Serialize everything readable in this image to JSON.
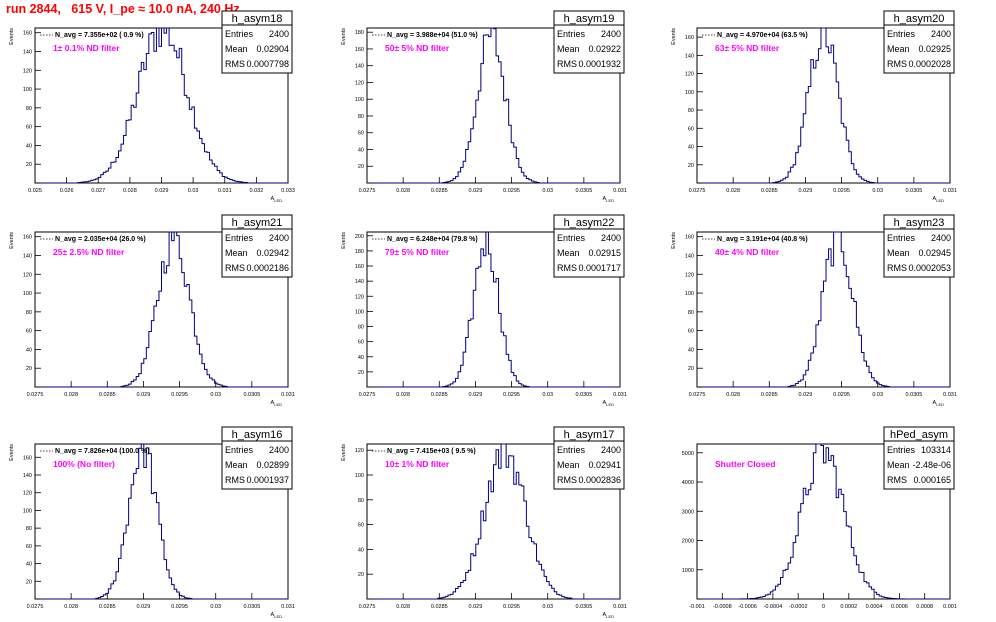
{
  "title": "run 2844,   615 V, I_pe ≈ 10.0 nA, 240 Hz",
  "colors": {
    "title": "#ff0000",
    "hist": "#000080",
    "annotation": "#ff00ff",
    "axis": "#000000"
  },
  "chart_data": [
    {
      "type": "bar",
      "name": "h_asym18",
      "annotation": "1± 0.1% ND filter",
      "navg": "N_avg = 7.355e+02 ( 0.9 %)",
      "stats": {
        "entries": "2400",
        "mean": "0.02904",
        "rms": "0.0007798"
      },
      "stats_labels": [
        "Entries",
        "Mean",
        "RMS"
      ],
      "xlim": [
        0.025,
        0.033
      ],
      "ylim": [
        0,
        165
      ],
      "xticks": [
        0.025,
        0.026,
        0.027,
        0.028,
        0.029,
        0.03,
        0.031,
        0.032,
        0.033
      ],
      "xtick_labels": [
        "0.025",
        "0.026",
        "0.027",
        "0.028",
        "0.029",
        "0.03",
        "0.031",
        "0.032",
        "0.033"
      ],
      "yticks": [
        0,
        20,
        40,
        60,
        80,
        100,
        120,
        140,
        160
      ],
      "ytick_labels": [
        "20",
        "40",
        "60",
        "80",
        "100",
        "120",
        "140",
        "160"
      ],
      "xlabel": "A_{LED}",
      "ylabel": "Events",
      "hist": {
        "mean": 0.02904,
        "rms": 0.0007798,
        "entries": 2400,
        "bins": 100,
        "peak": 165
      }
    },
    {
      "type": "bar",
      "name": "h_asym19",
      "annotation": "50± 5% ND filter",
      "navg": "N_avg = 3.988e+04 (51.0 %)",
      "stats": {
        "entries": "2400",
        "mean": "0.02922",
        "rms": "0.0001932"
      },
      "stats_labels": [
        "Entries",
        "Mean",
        "RMS"
      ],
      "xlim": [
        0.0275,
        0.031
      ],
      "ylim": [
        0,
        185
      ],
      "xticks": [
        0.0275,
        0.028,
        0.0285,
        0.029,
        0.0295,
        0.03,
        0.0305,
        0.031
      ],
      "xtick_labels": [
        "0.0275",
        "0.028",
        "0.0285",
        "0.029",
        "0.0295",
        "0.03",
        "0.0305",
        "0.031"
      ],
      "yticks": [
        0,
        20,
        40,
        60,
        80,
        100,
        120,
        140,
        160,
        180
      ],
      "ytick_labels": [
        "20",
        "40",
        "60",
        "80",
        "100",
        "120",
        "140",
        "160",
        "180"
      ],
      "xlabel": "A_{LED}",
      "ylabel": "Events",
      "hist": {
        "mean": 0.02922,
        "rms": 0.0001932,
        "entries": 2400,
        "bins": 100,
        "peak": 175
      }
    },
    {
      "type": "bar",
      "name": "h_asym20",
      "annotation": "63± 5% ND filter",
      "navg": "N_avg = 4.970e+04 (63.5 %)",
      "stats": {
        "entries": "2400",
        "mean": "0.02925",
        "rms": "0.0002028"
      },
      "stats_labels": [
        "Entries",
        "Mean",
        "RMS"
      ],
      "xlim": [
        0.0275,
        0.031
      ],
      "ylim": [
        0,
        170
      ],
      "xticks": [
        0.0275,
        0.028,
        0.0285,
        0.029,
        0.0295,
        0.03,
        0.0305,
        0.031
      ],
      "xtick_labels": [
        "0.0275",
        "0.028",
        "0.0285",
        "0.029",
        "0.0295",
        "0.03",
        "0.0305",
        "0.031"
      ],
      "yticks": [
        0,
        20,
        40,
        60,
        80,
        100,
        120,
        140,
        160
      ],
      "ytick_labels": [
        "20",
        "40",
        "60",
        "80",
        "100",
        "120",
        "140",
        "160"
      ],
      "xlabel": "A_{LED}",
      "ylabel": "Events",
      "hist": {
        "mean": 0.02925,
        "rms": 0.0002028,
        "entries": 2400,
        "bins": 100,
        "peak": 165
      }
    },
    {
      "type": "bar",
      "name": "h_asym21",
      "annotation": "25± 2.5% ND filter",
      "navg": "N_avg = 2.035e+04 (26.0 %)",
      "stats": {
        "entries": "2400",
        "mean": "0.02942",
        "rms": "0.0002186"
      },
      "stats_labels": [
        "Entries",
        "Mean",
        "RMS"
      ],
      "xlim": [
        0.0275,
        0.031
      ],
      "ylim": [
        0,
        165
      ],
      "xticks": [
        0.0275,
        0.028,
        0.0285,
        0.029,
        0.0295,
        0.03,
        0.0305,
        0.031
      ],
      "xtick_labels": [
        "0.0275",
        "0.028",
        "0.0285",
        "0.029",
        "0.0295",
        "0.03",
        "0.0305",
        "0.031"
      ],
      "yticks": [
        0,
        20,
        40,
        60,
        80,
        100,
        120,
        140,
        160
      ],
      "ytick_labels": [
        "20",
        "40",
        "60",
        "80",
        "100",
        "120",
        "140",
        "160"
      ],
      "xlabel": "A_{LED}",
      "ylabel": "Events",
      "hist": {
        "mean": 0.02942,
        "rms": 0.0002186,
        "entries": 2400,
        "bins": 100,
        "peak": 160
      }
    },
    {
      "type": "bar",
      "name": "h_asym22",
      "annotation": "79± 5% ND filter",
      "navg": "N_avg = 6.248e+04 (79.8 %)",
      "stats": {
        "entries": "2400",
        "mean": "0.02915",
        "rms": "0.0001717"
      },
      "stats_labels": [
        "Entries",
        "Mean",
        "RMS"
      ],
      "xlim": [
        0.0275,
        0.031
      ],
      "ylim": [
        0,
        205
      ],
      "xticks": [
        0.0275,
        0.028,
        0.0285,
        0.029,
        0.0295,
        0.03,
        0.0305,
        0.031
      ],
      "xtick_labels": [
        "0.0275",
        "0.028",
        "0.0285",
        "0.029",
        "0.0295",
        "0.03",
        "0.0305",
        "0.031"
      ],
      "yticks": [
        0,
        20,
        40,
        60,
        80,
        100,
        120,
        140,
        160,
        180,
        200
      ],
      "ytick_labels": [
        "20",
        "40",
        "60",
        "80",
        "100",
        "120",
        "140",
        "160",
        "180",
        "200"
      ],
      "xlabel": "A_{LED}",
      "ylabel": "Events",
      "hist": {
        "mean": 0.02915,
        "rms": 0.0001717,
        "entries": 2400,
        "bins": 100,
        "peak": 195
      }
    },
    {
      "type": "bar",
      "name": "h_asym23",
      "annotation": "40± 4% ND filter",
      "navg": "N_avg = 3.191e+04 (40.8 %)",
      "stats": {
        "entries": "2400",
        "mean": "0.02945",
        "rms": "0.0002053"
      },
      "stats_labels": [
        "Entries",
        "Mean",
        "RMS"
      ],
      "xlim": [
        0.0275,
        0.031
      ],
      "ylim": [
        0,
        165
      ],
      "xticks": [
        0.0275,
        0.028,
        0.0285,
        0.029,
        0.0295,
        0.03,
        0.0305,
        0.031
      ],
      "xtick_labels": [
        "0.0275",
        "0.028",
        "0.0285",
        "0.029",
        "0.0295",
        "0.03",
        "0.0305",
        "0.031"
      ],
      "yticks": [
        0,
        20,
        40,
        60,
        80,
        100,
        120,
        140,
        160
      ],
      "ytick_labels": [
        "20",
        "40",
        "60",
        "80",
        "100",
        "120",
        "140",
        "160"
      ],
      "xlabel": "A_{LED}",
      "ylabel": "Events",
      "hist": {
        "mean": 0.02945,
        "rms": 0.0002053,
        "entries": 2400,
        "bins": 100,
        "peak": 160
      }
    },
    {
      "type": "bar",
      "name": "h_asym16",
      "annotation": "100% (No filter)",
      "navg": "N_avg = 7.826e+04 (100.0 %)",
      "stats": {
        "entries": "2400",
        "mean": "0.02899",
        "rms": "0.0001937"
      },
      "stats_labels": [
        "Entries",
        "Mean",
        "RMS"
      ],
      "xlim": [
        0.0275,
        0.031
      ],
      "ylim": [
        0,
        175
      ],
      "xticks": [
        0.0275,
        0.028,
        0.0285,
        0.029,
        0.0295,
        0.03,
        0.0305,
        0.031
      ],
      "xtick_labels": [
        "0.0275",
        "0.028",
        "0.0285",
        "0.029",
        "0.0295",
        "0.03",
        "0.0305",
        "0.031"
      ],
      "yticks": [
        0,
        20,
        40,
        60,
        80,
        100,
        120,
        140,
        160
      ],
      "ytick_labels": [
        "20",
        "40",
        "60",
        "80",
        "100",
        "120",
        "140",
        "160"
      ],
      "xlabel": "A_{LED}",
      "ylabel": "Events",
      "hist": {
        "mean": 0.02899,
        "rms": 0.0001937,
        "entries": 2400,
        "bins": 100,
        "peak": 172
      }
    },
    {
      "type": "bar",
      "name": "h_asym17",
      "annotation": "10± 1% ND filter",
      "navg": "N_avg = 7.415e+03 ( 9.5 %)",
      "stats": {
        "entries": "2400",
        "mean": "0.02941",
        "rms": "0.0002836"
      },
      "stats_labels": [
        "Entries",
        "Mean",
        "RMS"
      ],
      "xlim": [
        0.0275,
        0.031
      ],
      "ylim": [
        0,
        125
      ],
      "xticks": [
        0.0275,
        0.028,
        0.0285,
        0.029,
        0.0295,
        0.03,
        0.0305,
        0.031
      ],
      "xtick_labels": [
        "0.0275",
        "0.028",
        "0.0285",
        "0.029",
        "0.0295",
        "0.03",
        "0.0305",
        "0.031"
      ],
      "yticks": [
        0,
        20,
        40,
        60,
        80,
        100,
        120
      ],
      "ytick_labels": [
        "20",
        "40",
        "60",
        "80",
        "100",
        "120"
      ],
      "xlabel": "A_{LED}",
      "ylabel": "Events",
      "hist": {
        "mean": 0.02941,
        "rms": 0.0002836,
        "entries": 2400,
        "bins": 100,
        "peak": 120
      }
    },
    {
      "type": "bar",
      "name": "hPed_asym",
      "annotation": "Shutter Closed",
      "navg": "",
      "stats": {
        "entries": "103314",
        "mean": "-2.48e-06",
        "rms": "0.000165"
      },
      "stats_labels": [
        "Entries",
        "Mean",
        "RMS"
      ],
      "xlim": [
        -0.001,
        0.001
      ],
      "ylim": [
        0,
        5300
      ],
      "xticks": [
        -0.001,
        -0.0008,
        -0.0006,
        -0.0004,
        -0.0002,
        0,
        0.0002,
        0.0004,
        0.0006,
        0.0008,
        0.001
      ],
      "xtick_labels": [
        "-0.001",
        "-0.0008",
        "-0.0006",
        "-0.0004",
        "-0.0002",
        "0",
        "0.0002",
        "0.0004",
        "0.0006",
        "0.0008",
        "0.001"
      ],
      "yticks": [
        0,
        1000,
        2000,
        3000,
        4000,
        5000
      ],
      "ytick_labels": [
        "1000",
        "2000",
        "3000",
        "4000",
        "5000"
      ],
      "xlabel": "",
      "ylabel": "",
      "hist": {
        "mean": -2.48e-06,
        "rms": 0.000165,
        "entries": 103314,
        "bins": 100,
        "peak": 5050
      }
    }
  ]
}
